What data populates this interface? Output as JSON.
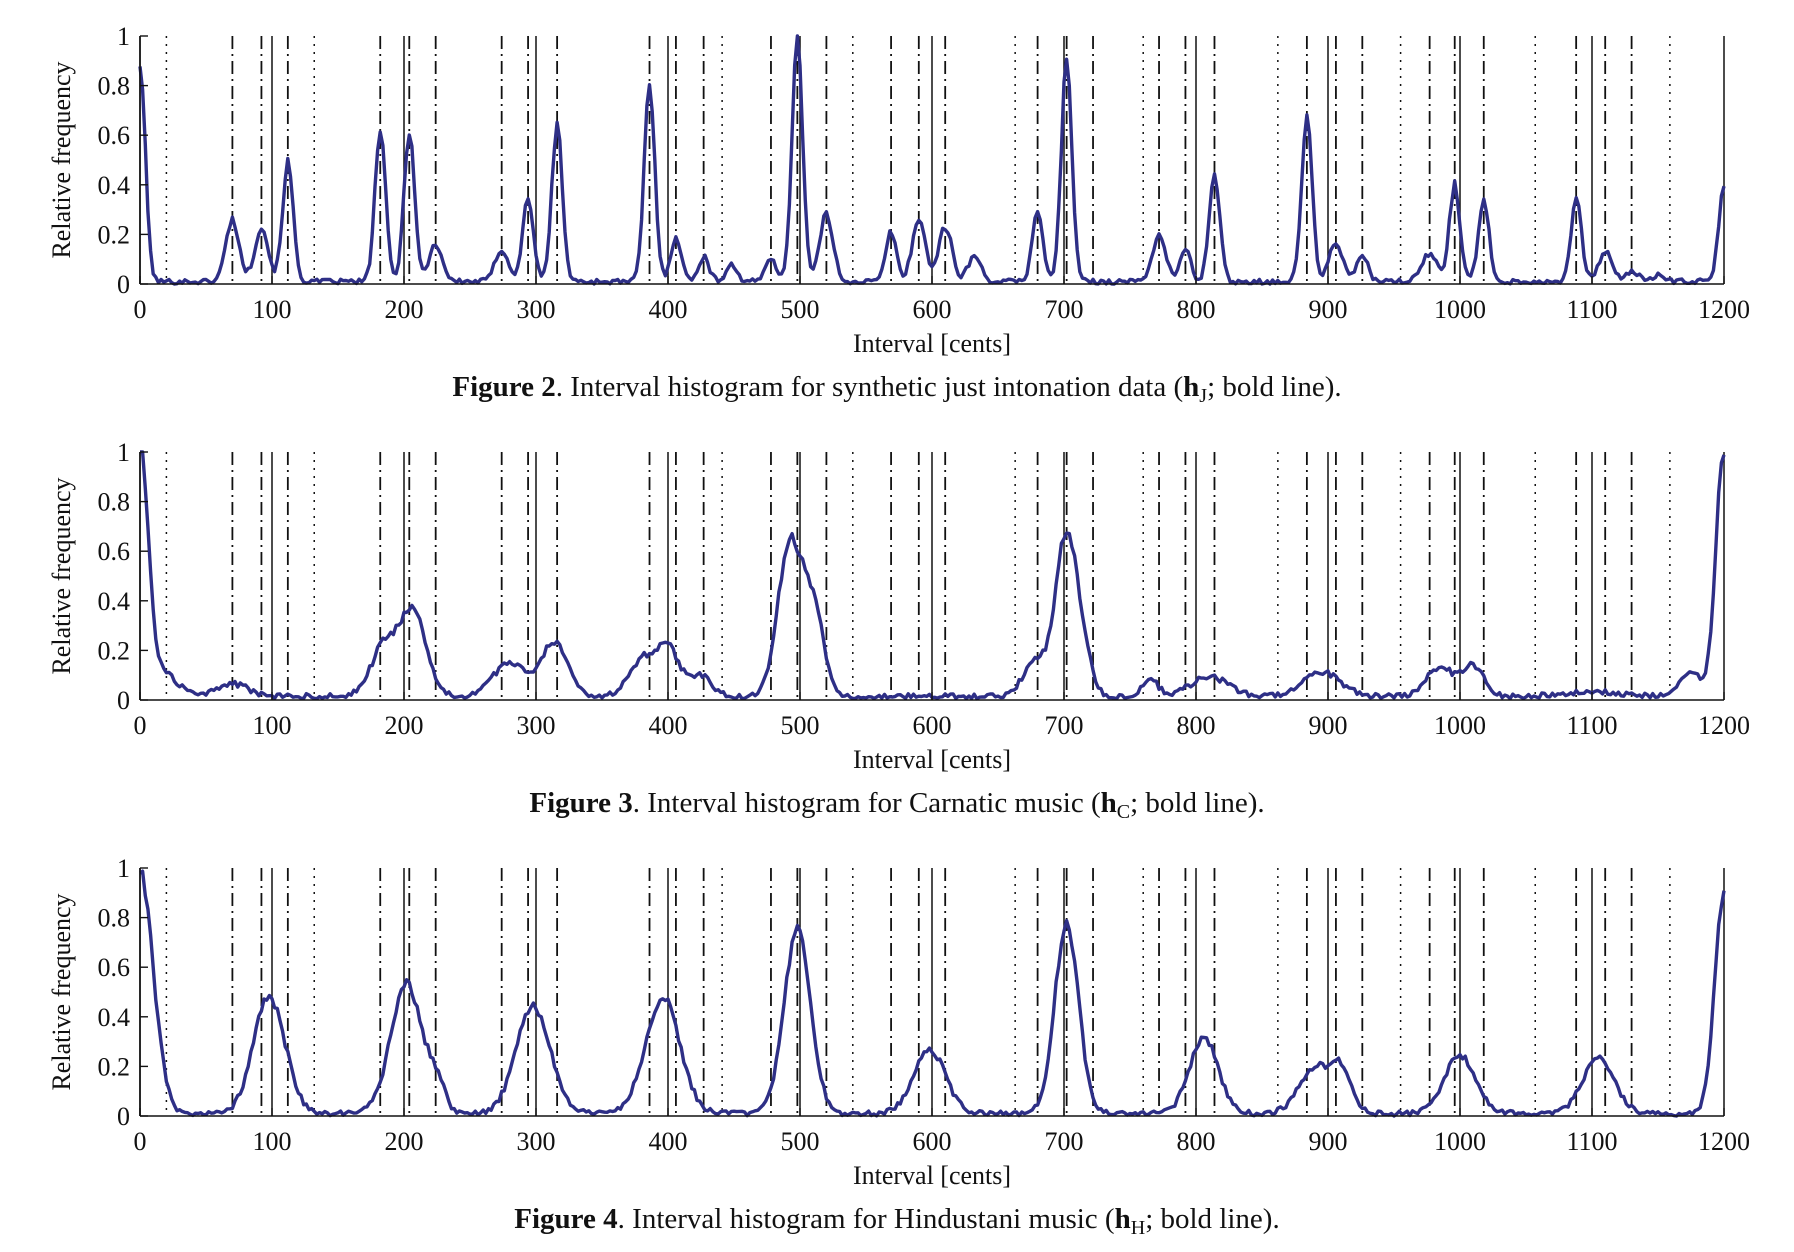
{
  "figures": [
    {
      "caption": {
        "label": "Figure 2",
        "text": ". Interval histogram for synthetic just intonation data (",
        "symbol": "h",
        "subscript": "J",
        "tail": "; bold line)."
      },
      "chart_data": {
        "type": "line",
        "xlabel": "Interval [cents]",
        "ylabel": "Relative frequency",
        "xlim": [
          0,
          1200
        ],
        "ylim": [
          0,
          1
        ],
        "xticks": [
          "0",
          "100",
          "200",
          "300",
          "400",
          "500",
          "600",
          "700",
          "800",
          "900",
          "1000",
          "1100",
          "1200"
        ],
        "yticks": [
          "0",
          "0.2",
          "0.4",
          "0.6",
          "0.8",
          "1"
        ],
        "reference_lines": {
          "solid": [
            0,
            100,
            200,
            300,
            400,
            500,
            600,
            700,
            800,
            900,
            1000,
            1100,
            1200
          ],
          "dashdot": [
            70,
            92,
            112,
            182,
            204,
            224,
            274,
            294,
            316,
            386,
            406,
            427,
            478,
            498,
            520,
            569,
            590,
            610,
            680,
            702,
            722,
            772,
            792,
            814,
            884,
            906,
            926,
            977,
            996,
            1018,
            1088,
            1110,
            1130
          ],
          "dotted": [
            20,
            132,
            441,
            540,
            663,
            760,
            862,
            955,
            1057,
            1159
          ]
        },
        "series": [
          {
            "color": "#2e2f86",
            "base": 0.01,
            "peaks": [
              [
                0,
                0.88,
                4
              ],
              [
                70,
                0.25,
                5
              ],
              [
                92,
                0.22,
                5
              ],
              [
                112,
                0.48,
                4
              ],
              [
                182,
                0.61,
                4
              ],
              [
                204,
                0.61,
                4
              ],
              [
                224,
                0.15,
                5
              ],
              [
                274,
                0.13,
                5
              ],
              [
                294,
                0.34,
                4
              ],
              [
                316,
                0.63,
                4
              ],
              [
                386,
                0.79,
                4
              ],
              [
                406,
                0.18,
                4
              ],
              [
                427,
                0.1,
                4
              ],
              [
                448,
                0.07,
                4
              ],
              [
                478,
                0.1,
                4
              ],
              [
                498,
                1.0,
                4
              ],
              [
                520,
                0.27,
                5
              ],
              [
                569,
                0.2,
                4
              ],
              [
                590,
                0.25,
                5
              ],
              [
                610,
                0.22,
                5
              ],
              [
                632,
                0.1,
                5
              ],
              [
                680,
                0.29,
                4
              ],
              [
                702,
                0.89,
                4
              ],
              [
                772,
                0.19,
                5
              ],
              [
                792,
                0.13,
                4
              ],
              [
                814,
                0.44,
                4
              ],
              [
                884,
                0.66,
                4
              ],
              [
                906,
                0.16,
                5
              ],
              [
                926,
                0.11,
                4
              ],
              [
                977,
                0.11,
                6
              ],
              [
                996,
                0.39,
                4
              ],
              [
                1018,
                0.33,
                4
              ],
              [
                1088,
                0.33,
                4
              ],
              [
                1110,
                0.12,
                5
              ],
              [
                1130,
                0.04,
                5
              ],
              [
                1150,
                0.03,
                4
              ],
              [
                1200,
                0.38,
                4
              ]
            ]
          }
        ]
      }
    },
    {
      "caption": {
        "label": "Figure 3",
        "text": ". Interval histogram for Carnatic music (",
        "symbol": "h",
        "subscript": "C",
        "tail": "; bold line)."
      },
      "chart_data": {
        "type": "line",
        "xlabel": "Interval [cents]",
        "ylabel": "Relative frequency",
        "xlim": [
          0,
          1200
        ],
        "ylim": [
          0,
          1
        ],
        "xticks": [
          "0",
          "100",
          "200",
          "300",
          "400",
          "500",
          "600",
          "700",
          "800",
          "900",
          "1000",
          "1100",
          "1200"
        ],
        "yticks": [
          "0",
          "0.2",
          "0.4",
          "0.6",
          "0.8",
          "1"
        ],
        "reference_lines": {
          "solid": [
            0,
            100,
            200,
            300,
            400,
            500,
            600,
            700,
            800,
            900,
            1000,
            1100,
            1200
          ],
          "dashdot": [
            70,
            92,
            112,
            182,
            204,
            224,
            274,
            294,
            316,
            386,
            406,
            427,
            478,
            498,
            520,
            569,
            590,
            610,
            680,
            702,
            722,
            772,
            792,
            814,
            884,
            906,
            926,
            977,
            996,
            1018,
            1088,
            1110,
            1130
          ],
          "dotted": [
            20,
            132,
            441,
            540,
            663,
            760,
            862,
            955,
            1057,
            1159
          ]
        },
        "series": [
          {
            "color": "#2e2f86",
            "base": 0.015,
            "peaks": [
              [
                0,
                1.0,
                6
              ],
              [
                15,
                0.1,
                12
              ],
              [
                70,
                0.05,
                12
              ],
              [
                185,
                0.2,
                10
              ],
              [
                207,
                0.33,
                10
              ],
              [
                280,
                0.14,
                12
              ],
              [
                314,
                0.22,
                10
              ],
              [
                380,
                0.14,
                10
              ],
              [
                400,
                0.19,
                9
              ],
              [
                425,
                0.08,
                8
              ],
              [
                492,
                0.6,
                9
              ],
              [
                510,
                0.35,
                8
              ],
              [
                680,
                0.15,
                10
              ],
              [
                700,
                0.5,
                7
              ],
              [
                710,
                0.3,
                8
              ],
              [
                765,
                0.07,
                6
              ],
              [
                810,
                0.08,
                14
              ],
              [
                895,
                0.1,
                14
              ],
              [
                985,
                0.12,
                10
              ],
              [
                1010,
                0.12,
                8
              ],
              [
                1100,
                0.02,
                20
              ],
              [
                1175,
                0.1,
                8
              ],
              [
                1200,
                1.0,
                6
              ]
            ]
          }
        ]
      }
    },
    {
      "caption": {
        "label": "Figure 4",
        "text": ". Interval histogram for Hindustani music (",
        "symbol": "h",
        "subscript": "H",
        "tail": "; bold line)."
      },
      "chart_data": {
        "type": "line",
        "xlabel": "Interval [cents]",
        "ylabel": "Relative frequency",
        "xlim": [
          0,
          1200
        ],
        "ylim": [
          0,
          1
        ],
        "xticks": [
          "0",
          "100",
          "200",
          "300",
          "400",
          "500",
          "600",
          "700",
          "800",
          "900",
          "1000",
          "1100",
          "1200"
        ],
        "yticks": [
          "0",
          "0.2",
          "0.4",
          "0.6",
          "0.8",
          "1"
        ],
        "reference_lines": {
          "solid": [
            0,
            100,
            200,
            300,
            400,
            500,
            600,
            700,
            800,
            900,
            1000,
            1100,
            1200
          ],
          "dashdot": [
            70,
            92,
            112,
            182,
            204,
            224,
            274,
            294,
            316,
            386,
            406,
            427,
            478,
            498,
            520,
            569,
            590,
            610,
            680,
            702,
            722,
            772,
            792,
            814,
            884,
            906,
            926,
            977,
            996,
            1018,
            1088,
            1110,
            1130
          ],
          "dotted": [
            20,
            132,
            441,
            540,
            663,
            760,
            862,
            955,
            1057,
            1159
          ]
        },
        "series": [
          {
            "color": "#2e2f86",
            "base": 0.01,
            "peaks": [
              [
                0,
                0.98,
                10
              ],
              [
                98,
                0.47,
                12
              ],
              [
                202,
                0.52,
                12
              ],
              [
                225,
                0.1,
                6
              ],
              [
                298,
                0.43,
                13
              ],
              [
                396,
                0.47,
                13
              ],
              [
                498,
                0.74,
                10
              ],
              [
                598,
                0.26,
                12
              ],
              [
                702,
                0.77,
                9
              ],
              [
                806,
                0.3,
                11
              ],
              [
                890,
                0.18,
                12
              ],
              [
                910,
                0.16,
                8
              ],
              [
                1000,
                0.23,
                12
              ],
              [
                1105,
                0.22,
                12
              ],
              [
                1200,
                0.9,
                7
              ]
            ]
          }
        ]
      }
    }
  ]
}
